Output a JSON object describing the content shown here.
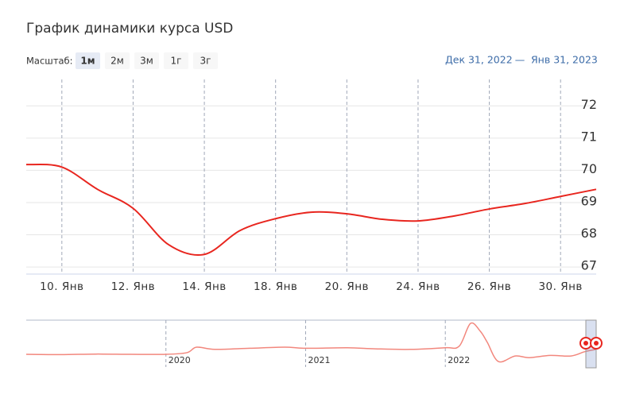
{
  "header": {
    "zoom_label": "Масштаб:",
    "zoom_buttons": [
      "1м",
      "2м",
      "3м",
      "1г",
      "3г"
    ],
    "selected_zoom": 0,
    "range_from": "Дек 31, 2022",
    "range_separator": "—",
    "range_to": "Янв 31, 2023"
  },
  "chart_data": [
    {
      "type": "line",
      "title": "График динамики курса USD",
      "x": [
        -0.5,
        0,
        0.5,
        1,
        1.5,
        2,
        2.5,
        3,
        3.5,
        4,
        4.5,
        5,
        5.5,
        6,
        6.5,
        7,
        7.5
      ],
      "series": [
        {
          "color": "#e8261f",
          "values": [
            70.18,
            70.1,
            69.41,
            68.82,
            67.69,
            67.39,
            68.13,
            68.5,
            68.7,
            68.65,
            68.48,
            68.43,
            68.58,
            68.8,
            68.97,
            69.19,
            69.41
          ]
        }
      ],
      "xlim": [
        -0.5,
        7.5
      ],
      "xticks": [
        {
          "value": 0,
          "label": "10. Янв"
        },
        {
          "value": 1,
          "label": "12. Янв"
        },
        {
          "value": 2,
          "label": "14. Янв"
        },
        {
          "value": 3,
          "label": "18. Янв"
        },
        {
          "value": 4,
          "label": "20. Янв"
        },
        {
          "value": 5,
          "label": "24. Янв"
        },
        {
          "value": 6,
          "label": "26. Янв"
        },
        {
          "value": 7,
          "label": "30. Янв"
        }
      ],
      "ylim": [
        66.78,
        72.82
      ],
      "yticks": [
        67,
        68,
        69,
        70,
        71,
        72
      ],
      "grid": true
    },
    {
      "type": "line",
      "x": [
        2019.0,
        2019.25,
        2019.5,
        2019.75,
        2020.0,
        2020.15,
        2020.22,
        2020.35,
        2020.6,
        2020.85,
        2021.0,
        2021.3,
        2021.5,
        2021.75,
        2022.0,
        2022.1,
        2022.18,
        2022.25,
        2022.3,
        2022.38,
        2022.5,
        2022.6,
        2022.75,
        2022.9,
        2023.0,
        2023.08
      ],
      "series": [
        {
          "color": "#f2877d",
          "values": [
            63,
            62.5,
            63.5,
            63,
            63,
            66,
            76,
            72,
            74,
            76,
            74,
            75,
            73,
            72,
            75,
            78,
            119,
            105,
            85,
            50,
            60,
            57,
            61,
            60,
            68,
            72
          ]
        }
      ],
      "xlim": [
        2019.0,
        2023.08
      ],
      "xticks": [
        2020,
        2021,
        2022
      ],
      "ylim": [
        40,
        125
      ]
    }
  ]
}
